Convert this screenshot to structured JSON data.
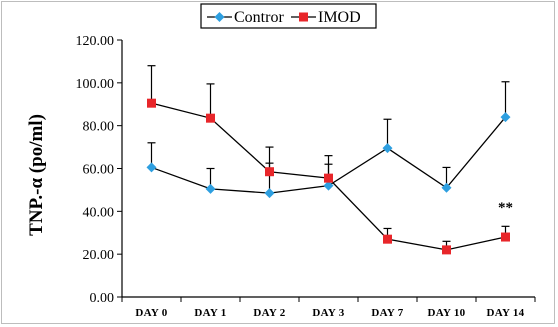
{
  "chart_data": {
    "type": "line",
    "ylabel": "TNP.-α (po/ml)",
    "categories": [
      "DAY 0",
      "DAY 1",
      "DAY 2",
      "DAY 3",
      "DAY 7",
      "DAY 10",
      "DAY 14"
    ],
    "ylim": [
      0,
      120
    ],
    "yticks": [
      "0.00",
      "20.00",
      "40.00",
      "60.00",
      "80.00",
      "100.00",
      "120.00"
    ],
    "grid": false,
    "legend_position": "top-center",
    "series": [
      {
        "name": "Contror",
        "color": "#2e9fe0",
        "marker": "diamond",
        "values": [
          60.5,
          50.5,
          48.5,
          52.0,
          69.5,
          51.0,
          84.0
        ],
        "error_upper": [
          72.0,
          60.0,
          62.5,
          62.0,
          83.0,
          60.5,
          100.5
        ]
      },
      {
        "name": "IMOD",
        "color": "#e8262a",
        "marker": "square",
        "values": [
          90.5,
          83.5,
          58.5,
          55.5,
          27.0,
          22.0,
          28.0
        ],
        "error_upper": [
          108.0,
          99.5,
          70.0,
          66.0,
          32.0,
          26.0,
          33.0
        ]
      }
    ],
    "annotations": [
      {
        "text": "**",
        "category": "DAY 14",
        "y": 42
      }
    ]
  }
}
